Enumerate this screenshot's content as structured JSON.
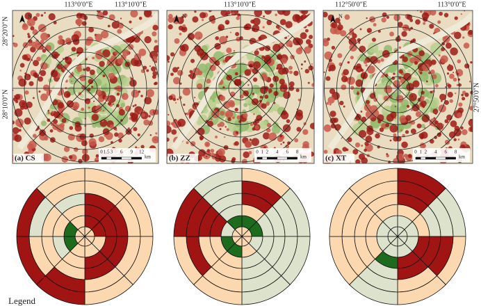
{
  "panels": [
    {
      "label": "(a)  CS",
      "top_labels": [
        "113°0′0″E",
        "113°10′0″E"
      ],
      "side_labels": [
        "28°20′0″N",
        "28°10′0″N"
      ],
      "north": "N",
      "scale_ticks": [
        "0",
        "1.5",
        "3",
        "6",
        "9",
        "12"
      ],
      "scale_unit": "km"
    },
    {
      "label": "(b)  ZZ",
      "top_labels": [
        "113°10′0″E"
      ],
      "side_labels": [],
      "north": "N",
      "scale_ticks": [
        "0",
        "1",
        "2",
        "4",
        "6",
        "8"
      ],
      "scale_unit": "km"
    },
    {
      "label": "(c)  XT",
      "top_labels": [
        "112°50′0″E",
        "113°0′0″E"
      ],
      "side_labels": [
        "27°50′0″N"
      ],
      "north": "N",
      "scale_ticks": [
        "0",
        "1",
        "2",
        "4",
        "6",
        "8"
      ],
      "scale_unit": "km"
    }
  ],
  "palette": {
    "r": "#a01414",
    "p": "#fcd8b0",
    "g": "#1d6b1d",
    "s": "#dce2cc"
  },
  "diagrams": [
    {
      "rings": [
        "pppppppp",
        "rrpppggp",
        "rrrrpspp",
        "rrrrppps",
        "ppppr spp",
        "pppprrrp"
      ]
    },
    {
      "rings": [
        "pppppppp",
        "ggspggsg",
        "pssspprs",
        "rssspprs",
        "rsssprrs",
        "pssspprs"
      ]
    },
    {
      "rings": [
        "ssssssss",
        "ssssssss",
        "pprrgppp",
        "rsrrsppp",
        "rsrpsppp",
        "rsppsppp"
      ]
    }
  ],
  "legend": "Legend"
}
